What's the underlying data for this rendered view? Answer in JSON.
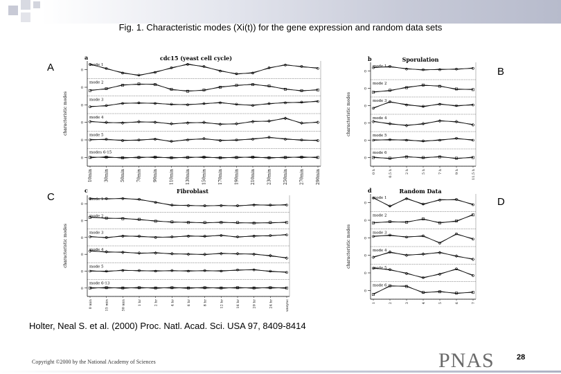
{
  "figure_title": "Fig. 1.   Characteristic modes (Xi(t)) for the gene expression and random data sets",
  "panel_letters": {
    "A": "A",
    "B": "B",
    "C": "C",
    "D": "D"
  },
  "caption": "Holter, Neal S. et al. (2000) Proc. Natl. Acad. Sci. USA 97, 8409-8414",
  "copyright": "Copyright ©2000 by the National Academy of Sciences",
  "journal_logo": "PNAS",
  "page_number": "28",
  "chart_data": [
    {
      "type": "line",
      "id": "a",
      "panel_label": "a",
      "title": "cdc15 (yeast cell cycle)",
      "ylabel": "characteristic modes",
      "mode_labels": [
        "mode 1",
        "mode 2",
        "mode 3",
        "mode 4",
        "mode 5",
        "modes 6-15"
      ],
      "x": [
        "10min",
        "30min",
        "50min",
        "70min",
        "90min",
        "110min",
        "130min",
        "150min",
        "170min",
        "190min",
        "210min",
        "230min",
        "250min",
        "270min",
        "290min"
      ],
      "yticks": [
        "0",
        "0",
        "0",
        "0",
        "0",
        "0"
      ],
      "series": [
        {
          "name": "mode 1",
          "values": [
            0.8,
            0.2,
            -0.5,
            -0.8,
            -0.4,
            0.3,
            0.8,
            0.5,
            -0.2,
            -0.6,
            -0.5,
            0.3,
            0.7,
            0.5,
            0.2
          ]
        },
        {
          "name": "mode 2",
          "values": [
            -0.5,
            -0.2,
            0.3,
            0.5,
            0.4,
            -0.3,
            -0.6,
            -0.4,
            0.0,
            0.3,
            0.4,
            0.2,
            -0.3,
            -0.5,
            -0.4
          ]
        },
        {
          "name": "mode 3",
          "values": [
            -0.3,
            -0.1,
            0.2,
            0.3,
            0.2,
            0.1,
            0.0,
            0.2,
            0.3,
            0.1,
            -0.1,
            0.2,
            0.3,
            0.4,
            0.5
          ]
        },
        {
          "name": "mode 4",
          "values": [
            0.1,
            0.0,
            -0.1,
            0.1,
            0.0,
            -0.2,
            -0.1,
            0.0,
            -0.3,
            -0.2,
            0.1,
            0.2,
            0.6,
            -0.1,
            0.0
          ]
        },
        {
          "name": "mode 5",
          "values": [
            0.0,
            0.1,
            -0.1,
            0.0,
            0.1,
            -0.2,
            0.0,
            0.2,
            -0.1,
            0.0,
            0.1,
            0.4,
            0.1,
            0.0,
            -0.1
          ]
        },
        {
          "name": "modes 6-15",
          "values": [
            0.0,
            0.05,
            -0.05,
            0.0,
            0.05,
            -0.05,
            0.0,
            0.05,
            -0.05,
            0.0,
            0.05,
            -0.05,
            0.0,
            0.05,
            0.0
          ]
        }
      ]
    },
    {
      "type": "line",
      "id": "b",
      "panel_label": "b",
      "title": "Sporulation",
      "ylabel": "characteristic modes",
      "mode_labels": [
        "mode 1",
        "mode 2",
        "mode 3",
        "mode 4",
        "mode 5",
        "mode 6"
      ],
      "x": [
        "0 h",
        "0.5 h",
        "2 h",
        "5 h",
        "7 h",
        "9 h",
        "11.5 h"
      ],
      "yticks": [
        "0",
        "0",
        "0",
        "0",
        "0",
        "0"
      ],
      "series": [
        {
          "name": "mode 1",
          "values": [
            0.5,
            0.7,
            0.3,
            0.2,
            0.2,
            0.3,
            0.4
          ]
        },
        {
          "name": "mode 2",
          "values": [
            -0.6,
            -0.3,
            0.1,
            0.5,
            0.3,
            -0.1,
            -0.2
          ]
        },
        {
          "name": "mode 3",
          "values": [
            -0.4,
            0.6,
            0.1,
            -0.1,
            0.2,
            0.0,
            0.1
          ]
        },
        {
          "name": "mode 4",
          "values": [
            0.2,
            -0.1,
            -0.4,
            -0.1,
            0.3,
            0.2,
            -0.3
          ]
        },
        {
          "name": "mode 5",
          "values": [
            0.0,
            0.1,
            0.0,
            -0.1,
            0.0,
            0.3,
            0.0
          ]
        },
        {
          "name": "mode 6",
          "values": [
            0.0,
            -0.1,
            0.1,
            0.0,
            0.1,
            -0.1,
            0.0
          ]
        }
      ]
    },
    {
      "type": "line",
      "id": "c",
      "panel_label": "c",
      "title": "Fibroblast",
      "ylabel": "characteristic modes",
      "mode_labels": [
        "mode 1",
        "mode 2",
        "mode 3",
        "mode 4",
        "mode 5",
        "mode 6-13"
      ],
      "x": [
        "0 min",
        "15 min",
        "30 min",
        "1 hr",
        "2 hr",
        "4 hr",
        "6 hr",
        "8 hr",
        "12 hr",
        "16 hr",
        "20 hr",
        "24 hr",
        "unsync"
      ],
      "yticks": [
        "0",
        "0",
        "0",
        "0",
        "0",
        "0"
      ],
      "series": [
        {
          "name": "mode 1",
          "values": [
            0.8,
            0.8,
            0.8,
            0.7,
            0.2,
            -0.2,
            -0.3,
            -0.3,
            -0.3,
            -0.3,
            -0.2,
            -0.2,
            -0.2
          ]
        },
        {
          "name": "mode 2",
          "values": [
            0.5,
            0.4,
            0.3,
            0.2,
            -0.1,
            -0.2,
            -0.3,
            -0.3,
            -0.3,
            -0.3,
            -0.4,
            -0.3,
            -0.3
          ]
        },
        {
          "name": "mode 3",
          "values": [
            0.1,
            0.0,
            0.2,
            0.2,
            0.0,
            0.1,
            0.2,
            0.2,
            0.3,
            0.1,
            0.2,
            0.3,
            0.4
          ]
        },
        {
          "name": "mode 4",
          "values": [
            0.5,
            0.4,
            0.3,
            0.2,
            0.2,
            0.1,
            0.0,
            0.0,
            0.1,
            0.1,
            0.0,
            -0.2,
            -0.6
          ]
        },
        {
          "name": "mode 5",
          "values": [
            0.0,
            0.0,
            0.1,
            0.1,
            0.0,
            0.1,
            0.0,
            0.1,
            0.0,
            0.2,
            0.2,
            0.0,
            -0.2
          ]
        },
        {
          "name": "mode 6-13",
          "values": [
            0.0,
            0.05,
            0.0,
            0.05,
            0.0,
            0.05,
            0.0,
            0.05,
            0.0,
            0.05,
            0.0,
            0.05,
            0.0
          ]
        }
      ]
    },
    {
      "type": "line",
      "id": "d",
      "panel_label": "d",
      "title": "Random Data",
      "ylabel": "characteristic modes",
      "mode_labels": [
        "mode 1",
        "mode 2",
        "mode 3",
        "mode 4",
        "mode 5",
        "mode 6"
      ],
      "x": [
        "1",
        "2",
        "3",
        "4",
        "5",
        "6",
        "7"
      ],
      "yticks": [
        "0",
        "0",
        "0",
        "0",
        "0",
        "0"
      ],
      "series": [
        {
          "name": "mode 1",
          "values": [
            0.7,
            -0.5,
            0.6,
            -0.2,
            0.4,
            0.5,
            -0.3
          ]
        },
        {
          "name": "mode 2",
          "values": [
            -0.4,
            -0.2,
            -0.3,
            0.2,
            -0.4,
            -0.1,
            0.8
          ]
        },
        {
          "name": "mode 3",
          "values": [
            0.2,
            0.4,
            0.1,
            0.3,
            -0.8,
            0.6,
            -0.2
          ]
        },
        {
          "name": "mode 4",
          "values": [
            -0.3,
            0.5,
            0.0,
            0.2,
            0.4,
            -0.1,
            -0.6
          ]
        },
        {
          "name": "mode 5",
          "values": [
            0.7,
            0.5,
            -0.1,
            -0.7,
            -0.2,
            0.6,
            -0.4
          ]
        },
        {
          "name": "mode 6",
          "values": [
            -0.6,
            0.7,
            0.6,
            -0.3,
            -0.2,
            -0.4,
            -0.3
          ]
        }
      ]
    }
  ]
}
